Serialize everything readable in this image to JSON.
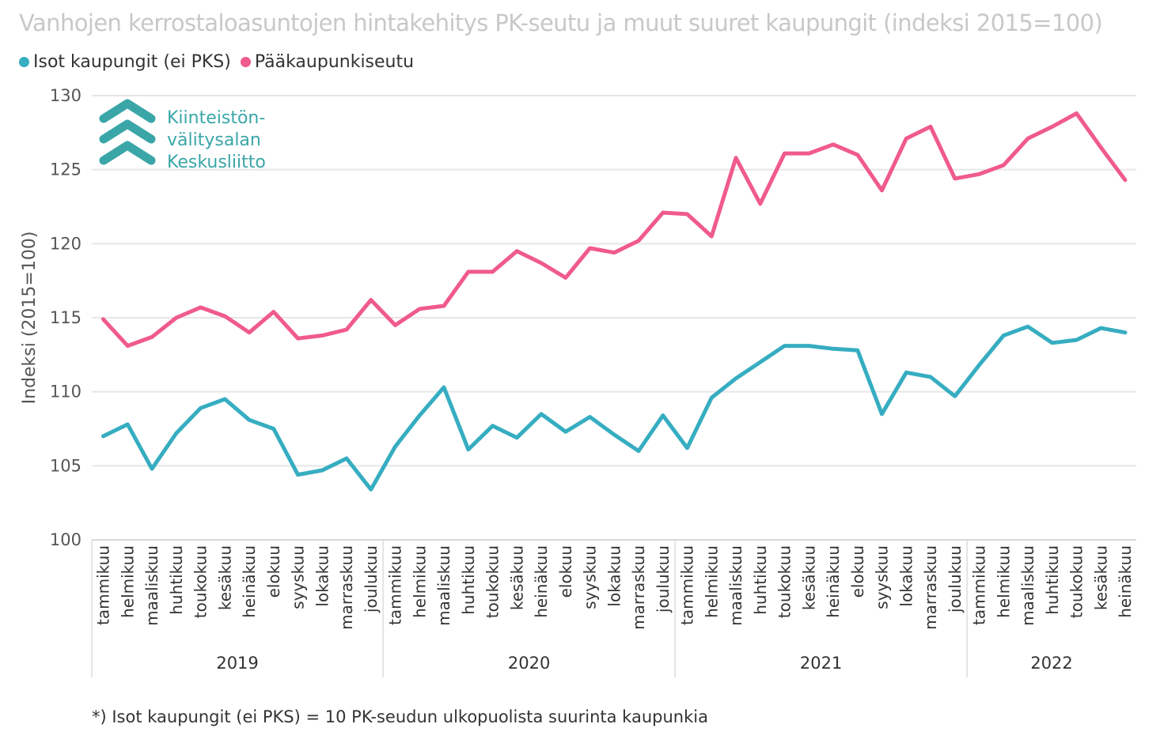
{
  "chart_data": {
    "type": "line",
    "title": "Vanhojen kerrostaloasuntojen hintakehitys PK-seutu ja muut suuret kaupungit (indeksi 2015=100)",
    "ylabel": "Indeksi (2015=100)",
    "xlabel": "",
    "ylim": [
      100,
      130
    ],
    "yticks": [
      100,
      105,
      110,
      115,
      120,
      125,
      130
    ],
    "grid": true,
    "legend_position": "top-left",
    "months": [
      "tammikuu",
      "helmikuu",
      "maaliskuu",
      "huhtikuu",
      "toukokuu",
      "kesäkuu",
      "heinäkuu",
      "elokuu",
      "syyskuu",
      "lokakuu",
      "marraskuu",
      "joulukuu"
    ],
    "years": [
      {
        "label": "2019",
        "months": 12
      },
      {
        "label": "2020",
        "months": 12
      },
      {
        "label": "2021",
        "months": 12
      },
      {
        "label": "2022",
        "months": 7
      }
    ],
    "series": [
      {
        "name": "Isot kaupungit (ei PKS)",
        "color": "#36adc1",
        "values": [
          107.0,
          107.8,
          104.8,
          107.2,
          108.9,
          109.5,
          108.1,
          107.5,
          104.4,
          104.7,
          105.5,
          103.4,
          106.3,
          108.4,
          110.3,
          106.1,
          107.7,
          106.9,
          108.5,
          107.3,
          108.3,
          107.1,
          106.0,
          108.4,
          106.2,
          109.6,
          110.9,
          112.0,
          113.1,
          113.1,
          112.9,
          112.8,
          108.5,
          111.3,
          111.0,
          109.7,
          111.8,
          113.8,
          114.4,
          113.3,
          113.5,
          114.3,
          114.0
        ]
      },
      {
        "name": "Pääkaupunkiseutu",
        "color": "#f05a8e",
        "values": [
          114.9,
          113.1,
          113.7,
          115.0,
          115.7,
          115.1,
          114.0,
          115.4,
          113.6,
          113.8,
          114.2,
          116.2,
          114.5,
          115.6,
          115.8,
          118.1,
          118.1,
          119.5,
          118.7,
          117.7,
          119.7,
          119.4,
          120.2,
          122.1,
          122.0,
          120.5,
          125.8,
          122.7,
          126.1,
          126.1,
          126.7,
          126.0,
          123.6,
          127.1,
          127.9,
          124.4,
          124.7,
          125.3,
          127.1,
          127.9,
          128.8,
          126.5,
          124.3
        ]
      }
    ],
    "annotation_logo": {
      "lines": [
        "Kiinteistön-",
        "välitysalan",
        "Keskusliitto"
      ],
      "color": "#3aa6a8"
    }
  },
  "footnote": "*) Isot kaupungit (ei PKS) = 10 PK-seudun ulkopuolista suurinta kaupunkia"
}
